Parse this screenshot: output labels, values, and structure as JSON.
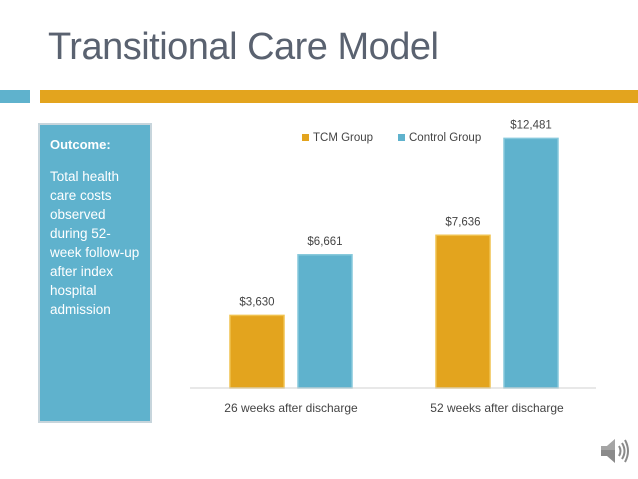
{
  "slide": {
    "title": "Transitional Care Model"
  },
  "side_panel": {
    "heading": "Outcome:",
    "body": "Total health care costs observed during 52-week follow-up after index hospital admission"
  },
  "colors": {
    "tcm": "#e3a41e",
    "control": "#5fb2cd",
    "title_text": "#5a6270",
    "rule_orange": "#e3a41e",
    "rule_blue": "#5fb2cd"
  },
  "icons": {
    "audio": "speaker-icon"
  },
  "chart_data": {
    "type": "bar",
    "title": "",
    "xlabel": "",
    "ylabel": "",
    "ylim": [
      0,
      14000
    ],
    "grid": false,
    "legend_position": "top",
    "categories": [
      "26 weeks after discharge",
      "52 weeks after discharge"
    ],
    "series": [
      {
        "name": "TCM Group",
        "values": [
          3630,
          7636
        ],
        "labels": [
          "$3,630",
          "$7,636"
        ]
      },
      {
        "name": "Control Group",
        "values": [
          6661,
          12481
        ],
        "labels": [
          "$6,661",
          "$12,481"
        ]
      }
    ]
  }
}
